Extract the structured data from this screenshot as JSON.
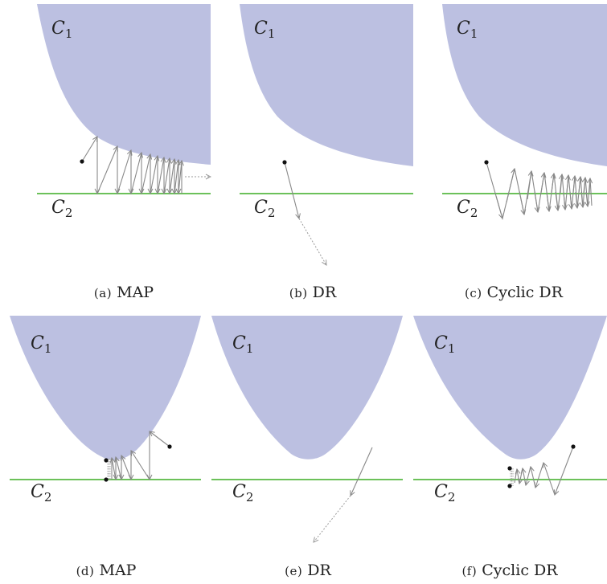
{
  "colors": {
    "set_fill": "#bcc0e1",
    "line": "#6cc15a",
    "arrow_solid": "#888888",
    "arrow_dotted": "#9a9a9a",
    "point": "#111111",
    "caption": "#222222"
  },
  "panels": [
    {
      "id": "a",
      "set_label": "C",
      "set_sub": "1",
      "line_label": "C",
      "line_sub": "2",
      "caption_letter": "(a)",
      "caption_text": "MAP"
    },
    {
      "id": "b",
      "set_label": "C",
      "set_sub": "1",
      "line_label": "C",
      "line_sub": "2",
      "caption_letter": "(b)",
      "caption_text": "DR"
    },
    {
      "id": "c",
      "set_label": "C",
      "set_sub": "1",
      "line_label": "C",
      "line_sub": "2",
      "caption_letter": "(c)",
      "caption_text": "Cyclic DR"
    },
    {
      "id": "d",
      "set_label": "C",
      "set_sub": "1",
      "line_label": "C",
      "line_sub": "2",
      "caption_letter": "(d)",
      "caption_text": "MAP"
    },
    {
      "id": "e",
      "set_label": "C",
      "set_sub": "1",
      "line_label": "C",
      "line_sub": "2",
      "caption_letter": "(e)",
      "caption_text": "DR"
    },
    {
      "id": "f",
      "set_label": "C",
      "set_sub": "1",
      "line_label": "C",
      "line_sub": "2",
      "caption_letter": "(f)",
      "caption_text": "Cyclic DR"
    }
  ]
}
